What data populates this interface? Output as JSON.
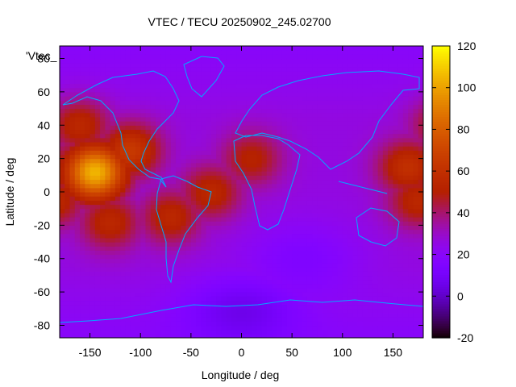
{
  "chart_data": {
    "type": "heatmap",
    "title": "VTEC / TECU 20250902_245.02700",
    "xlabel": "Longitude / deg",
    "ylabel": "Latitude / deg",
    "xlim": [
      -180,
      180
    ],
    "ylim": [
      -87.5,
      87.5
    ],
    "x_ticks": [
      -150,
      -100,
      -50,
      0,
      50,
      100,
      150
    ],
    "y_ticks": [
      -80,
      -60,
      -40,
      -20,
      0,
      20,
      40,
      60,
      80
    ],
    "colorbar": {
      "range": [
        -20,
        120
      ],
      "ticks": [
        -20,
        0,
        20,
        40,
        60,
        80,
        100,
        120
      ],
      "colormap": "gnuplot default (black-purple-red-orange-yellow)"
    },
    "legend_text": "'Vtec_",
    "grid": false,
    "coastline_color": "#00aaff",
    "features": [
      {
        "lon": -145,
        "lat": 12,
        "value": 105,
        "desc": "peak"
      },
      {
        "lon": -110,
        "lat": 25,
        "value": 65
      },
      {
        "lon": -160,
        "lat": 40,
        "value": 55
      },
      {
        "lon": -130,
        "lat": -18,
        "value": 55
      },
      {
        "lon": -70,
        "lat": -15,
        "value": 55
      },
      {
        "lon": -30,
        "lat": 0,
        "value": 55
      },
      {
        "lon": 10,
        "lat": 20,
        "value": 52
      },
      {
        "lon": 165,
        "lat": 15,
        "value": 60
      },
      {
        "lon": 175,
        "lat": -5,
        "value": 55
      },
      {
        "lon": 0,
        "lat": -70,
        "value": 10
      },
      {
        "lon": 60,
        "lat": -40,
        "value": 15
      }
    ]
  }
}
